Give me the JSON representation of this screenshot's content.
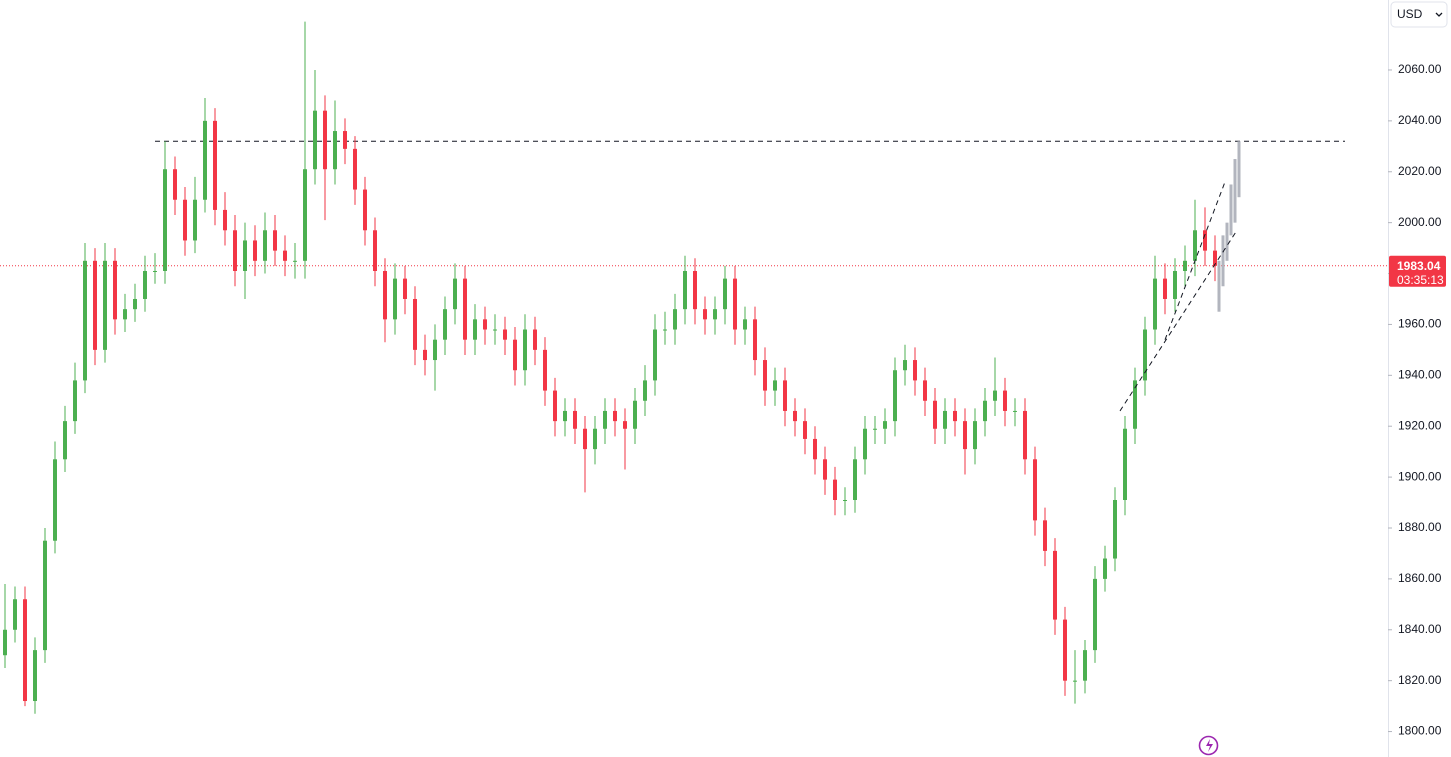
{
  "chart_data": {
    "type": "candlestick",
    "currency": "USD",
    "last_price": 1983.04,
    "countdown": "03:35:13",
    "up_color": "#4caf50",
    "down_color": "#f23645",
    "ylim": [
      1790,
      2087.5
    ],
    "yticks": [
      {
        "value": 1800,
        "label": "1800.00"
      },
      {
        "value": 1820,
        "label": "1820.00"
      },
      {
        "value": 1840,
        "label": "1840.00"
      },
      {
        "value": 1860,
        "label": "1860.00"
      },
      {
        "value": 1880,
        "label": "1880.00"
      },
      {
        "value": 1900,
        "label": "1900.00"
      },
      {
        "value": 1920,
        "label": "1920.00"
      },
      {
        "value": 1940,
        "label": "1940.00"
      },
      {
        "value": 1960,
        "label": "1960.00"
      },
      {
        "value": 1980,
        "label": "1980.00"
      },
      {
        "value": 2000,
        "label": "2000.00"
      },
      {
        "value": 2020,
        "label": "2020.00"
      },
      {
        "value": 2040,
        "label": "2040.00"
      },
      {
        "value": 2060,
        "label": "2060.00"
      }
    ],
    "open": [
      1830,
      1840,
      1852,
      1812,
      1832,
      1875,
      1907,
      1922,
      1938,
      1985,
      1950,
      1985,
      1962,
      1966,
      1970,
      1981,
      1981,
      2021,
      2009,
      1993,
      2009,
      2040,
      2005,
      1997,
      1981,
      1993,
      1985,
      1997,
      1989,
      1985,
      1985,
      2021,
      2044,
      2021,
      2036,
      2029,
      2013,
      1997,
      1981,
      1962,
      1978,
      1970,
      1950,
      1946,
      1954,
      1966,
      1978,
      1954,
      1962,
      1958,
      1958,
      1954,
      1942,
      1958,
      1950,
      1934,
      1922,
      1926,
      1919,
      1911,
      1919,
      1926,
      1922,
      1919,
      1930,
      1938,
      1958,
      1958,
      1966,
      1981,
      1966,
      1962,
      1966,
      1978,
      1958,
      1962,
      1946,
      1934,
      1938,
      1926,
      1922,
      1915,
      1907,
      1899,
      1891,
      1891,
      1907,
      1919,
      1919,
      1922,
      1942,
      1946,
      1938,
      1930,
      1919,
      1926,
      1922,
      1911,
      1922,
      1930,
      1934,
      1926,
      1926,
      1907,
      1883,
      1871,
      1844,
      1820,
      1820,
      1832,
      1860,
      1868,
      1891,
      1919,
      1938,
      1958,
      1978,
      1970,
      1981,
      1985,
      1997,
      1989
    ],
    "high": [
      1858,
      1857,
      1857,
      1837,
      1880,
      1914,
      1928,
      1945,
      1992,
      1990,
      1992,
      1990,
      1972,
      1976,
      1987,
      1988,
      2032,
      2026,
      2014,
      2018,
      2049,
      2045,
      2012,
      2003,
      2000,
      1999,
      2004,
      2003,
      1995,
      1992,
      2079,
      2060,
      2050,
      2048,
      2041,
      2034,
      2018,
      2002,
      1986,
      1984,
      1983,
      1975,
      1956,
      1960,
      1971,
      1984,
      1983,
      1968,
      1967,
      1964,
      1963,
      1959,
      1964,
      1963,
      1955,
      1939,
      1931,
      1931,
      1924,
      1924,
      1931,
      1931,
      1927,
      1935,
      1944,
      1964,
      1965,
      1972,
      1987,
      1986,
      1971,
      1971,
      1983,
      1983,
      1967,
      1967,
      1951,
      1943,
      1943,
      1931,
      1927,
      1920,
      1912,
      1904,
      1896,
      1912,
      1924,
      1924,
      1927,
      1947,
      1952,
      1951,
      1943,
      1935,
      1931,
      1931,
      1927,
      1927,
      1935,
      1947,
      1939,
      1931,
      1931,
      1912,
      1888,
      1876,
      1849,
      1832,
      1836,
      1865,
      1873,
      1896,
      1924,
      1943,
      1963,
      1987,
      1984,
      1986,
      1991,
      2009,
      2006,
      1995
    ],
    "low": [
      1825,
      1835,
      1810,
      1807,
      1827,
      1870,
      1902,
      1917,
      1933,
      1944,
      1945,
      1956,
      1957,
      1961,
      1965,
      1976,
      1976,
      2003,
      1987,
      1988,
      2004,
      1999,
      1991,
      1975,
      1970,
      1979,
      1980,
      1983,
      1979,
      1978,
      1978,
      2015,
      2001,
      2015,
      2023,
      2007,
      1991,
      1975,
      1953,
      1956,
      1964,
      1944,
      1940,
      1934,
      1948,
      1960,
      1948,
      1948,
      1952,
      1952,
      1948,
      1936,
      1936,
      1944,
      1928,
      1916,
      1916,
      1913,
      1894,
      1905,
      1913,
      1916,
      1903,
      1913,
      1924,
      1932,
      1952,
      1952,
      1960,
      1960,
      1956,
      1956,
      1960,
      1952,
      1952,
      1940,
      1928,
      1928,
      1920,
      1916,
      1909,
      1901,
      1893,
      1885,
      1885,
      1886,
      1901,
      1913,
      1913,
      1916,
      1936,
      1932,
      1924,
      1913,
      1913,
      1916,
      1901,
      1905,
      1916,
      1924,
      1920,
      1920,
      1901,
      1877,
      1865,
      1838,
      1814,
      1811,
      1815,
      1827,
      1855,
      1863,
      1885,
      1913,
      1932,
      1952,
      1964,
      1965,
      1975,
      1979,
      1983,
      1977
    ],
    "close": [
      1840,
      1852,
      1812,
      1832,
      1875,
      1907,
      1922,
      1938,
      1985,
      1950,
      1985,
      1962,
      1966,
      1970,
      1981,
      1981,
      2021,
      2009,
      1993,
      2009,
      2040,
      2005,
      1997,
      1981,
      1993,
      1985,
      1997,
      1989,
      1985,
      1985,
      2021,
      2044,
      2021,
      2036,
      2029,
      2013,
      1997,
      1981,
      1962,
      1978,
      1970,
      1950,
      1946,
      1954,
      1966,
      1978,
      1954,
      1962,
      1958,
      1958,
      1954,
      1942,
      1958,
      1950,
      1934,
      1922,
      1926,
      1919,
      1911,
      1919,
      1926,
      1922,
      1919,
      1930,
      1938,
      1958,
      1958,
      1966,
      1981,
      1966,
      1962,
      1966,
      1978,
      1958,
      1962,
      1946,
      1934,
      1938,
      1926,
      1922,
      1915,
      1907,
      1899,
      1891,
      1891,
      1907,
      1919,
      1919,
      1922,
      1942,
      1946,
      1938,
      1930,
      1919,
      1926,
      1922,
      1911,
      1922,
      1930,
      1934,
      1926,
      1926,
      1907,
      1883,
      1871,
      1844,
      1820,
      1820,
      1832,
      1860,
      1868,
      1891,
      1919,
      1938,
      1958,
      1978,
      1970,
      1981,
      1985,
      1997,
      1989,
      1983.04
    ],
    "projection": {
      "color": "#b2b5be",
      "high": [
        1985,
        1995,
        2000,
        2015,
        2025,
        2032
      ],
      "low": [
        1965,
        1975,
        1985,
        1995,
        2000,
        2010
      ]
    },
    "resistance": {
      "value": 2032,
      "from": 15,
      "to": 134
    },
    "trendlines": [
      {
        "from": [
          111.5,
          1926
        ],
        "to": [
          123.2,
          1997
        ]
      },
      {
        "from": [
          116,
          1954
        ],
        "to": [
          122,
          2016
        ]
      }
    ]
  }
}
